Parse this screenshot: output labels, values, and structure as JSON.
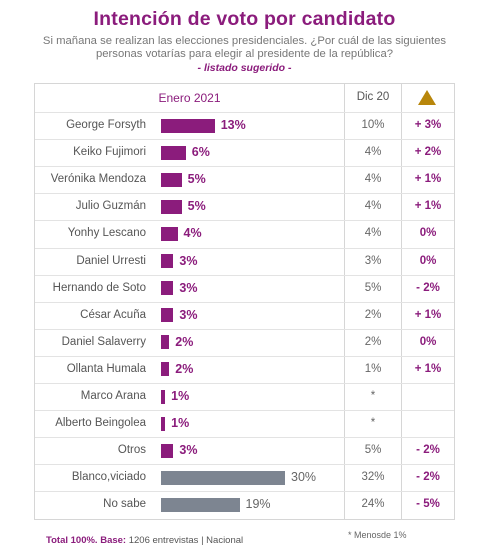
{
  "title": "Intención de voto por candidato",
  "subtitle_line1": "Si mañana se realizan las elecciones presidenciales. ¿Por cuál de las siguientes",
  "subtitle_line2": "personas votarías para elegir al presidente de la república?",
  "suggested": "- listado sugerido -",
  "colors": {
    "accent": "#8b1c7c",
    "gray_bar": "#7d8591",
    "triangle": "#b8860b"
  },
  "chart_data": {
    "type": "bar",
    "orientation": "horizontal",
    "headers": {
      "current": "Enero 2021",
      "previous": "Dic 20",
      "change_icon": "triangle-delta-icon"
    },
    "xlim": [
      0,
      30
    ],
    "rows": [
      {
        "name": "George Forsyth",
        "value": 13,
        "label": "13%",
        "dic": "10%",
        "delta": "+ 3%",
        "group": "candidate"
      },
      {
        "name": "Keiko Fujimori",
        "value": 6,
        "label": "6%",
        "dic": "4%",
        "delta": "+ 2%",
        "group": "candidate"
      },
      {
        "name": "Verónika Mendoza",
        "value": 5,
        "label": "5%",
        "dic": "4%",
        "delta": "+ 1%",
        "group": "candidate"
      },
      {
        "name": "Julio Guzmán",
        "value": 5,
        "label": "5%",
        "dic": "4%",
        "delta": "+ 1%",
        "group": "candidate"
      },
      {
        "name": "Yonhy Lescano",
        "value": 4,
        "label": "4%",
        "dic": "4%",
        "delta": "0%",
        "group": "candidate"
      },
      {
        "name": "Daniel Urresti",
        "value": 3,
        "label": "3%",
        "dic": "3%",
        "delta": "0%",
        "group": "candidate"
      },
      {
        "name": "Hernando de Soto",
        "value": 3,
        "label": "3%",
        "dic": "5%",
        "delta": "- 2%",
        "group": "candidate"
      },
      {
        "name": "César Acuña",
        "value": 3,
        "label": "3%",
        "dic": "2%",
        "delta": "+ 1%",
        "group": "candidate"
      },
      {
        "name": "Daniel Salaverry",
        "value": 2,
        "label": "2%",
        "dic": "2%",
        "delta": "0%",
        "group": "candidate"
      },
      {
        "name": "Ollanta Humala",
        "value": 2,
        "label": "2%",
        "dic": "1%",
        "delta": "+ 1%",
        "group": "candidate"
      },
      {
        "name": "Marco Arana",
        "value": 1,
        "label": "1%",
        "dic": "*",
        "delta": "",
        "group": "candidate"
      },
      {
        "name": "Alberto Beingolea",
        "value": 1,
        "label": "1%",
        "dic": "*",
        "delta": "",
        "group": "candidate"
      },
      {
        "name": "Otros",
        "value": 3,
        "label": "3%",
        "dic": "5%",
        "delta": "- 2%",
        "group": "candidate"
      },
      {
        "name": "Blanco,viciado",
        "value": 30,
        "label": "30%",
        "dic": "32%",
        "delta": "- 2%",
        "group": "other"
      },
      {
        "name": "No sabe",
        "value": 19,
        "label": "19%",
        "dic": "24%",
        "delta": "- 5%",
        "group": "other"
      }
    ]
  },
  "footer": {
    "total_label": "Total 100%. Base:",
    "base_text": "1206 entrevistas | Nacional",
    "note": "* Menosde 1%"
  }
}
